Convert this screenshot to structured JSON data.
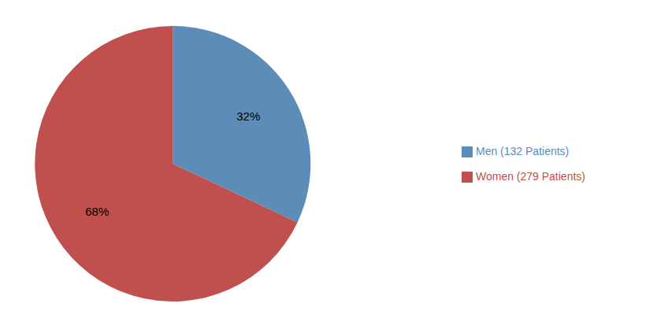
{
  "chart_data": {
    "type": "pie",
    "categories": [
      "Men (132 Patients)",
      "Women (279 Patients)"
    ],
    "values": [
      32,
      68
    ],
    "value_labels": [
      "32%",
      "68%"
    ],
    "colors": [
      "#5B8DB8",
      "#C0504D"
    ],
    "data_labels": true,
    "legend": "right"
  }
}
